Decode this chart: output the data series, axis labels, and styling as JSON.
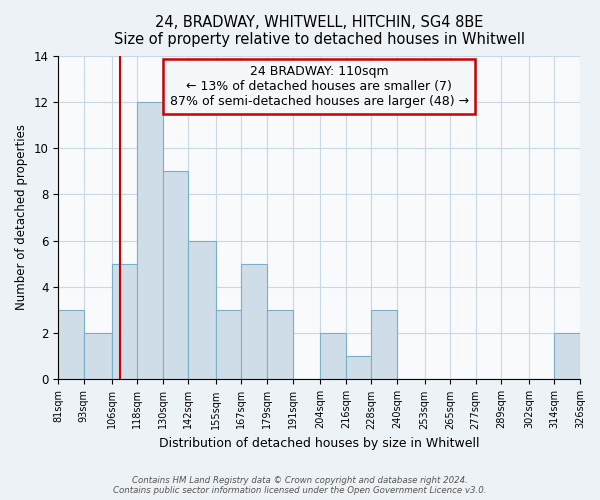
{
  "title": "24, BRADWAY, WHITWELL, HITCHIN, SG4 8BE",
  "subtitle": "Size of property relative to detached houses in Whitwell",
  "xlabel": "Distribution of detached houses by size in Whitwell",
  "ylabel": "Number of detached properties",
  "bin_edges": [
    81,
    93,
    106,
    118,
    130,
    142,
    155,
    167,
    179,
    191,
    204,
    216,
    228,
    240,
    253,
    265,
    277,
    289,
    302,
    314,
    326
  ],
  "bin_counts": [
    3,
    2,
    5,
    12,
    9,
    6,
    3,
    5,
    3,
    0,
    2,
    1,
    3,
    0,
    0,
    0,
    0,
    0,
    0,
    2
  ],
  "bar_color": "#cfdde8",
  "bar_edgecolor": "#7aafc8",
  "property_size": 110,
  "vline_color": "#cc0000",
  "annotation_line1": "24 BRADWAY: 110sqm",
  "annotation_line2": "← 13% of detached houses are smaller (7)",
  "annotation_line3": "87% of semi-detached houses are larger (48) →",
  "annotation_box_edgecolor": "#cc0000",
  "annotation_box_facecolor": "#f5f8fb",
  "ylim": [
    0,
    14
  ],
  "yticks": [
    0,
    2,
    4,
    6,
    8,
    10,
    12,
    14
  ],
  "footer_line1": "Contains HM Land Registry data © Crown copyright and database right 2024.",
  "footer_line2": "Contains public sector information licensed under the Open Government Licence v3.0.",
  "background_color": "#edf2f7",
  "plot_background_color": "#f8fafc",
  "grid_color": "#c8d8e4"
}
